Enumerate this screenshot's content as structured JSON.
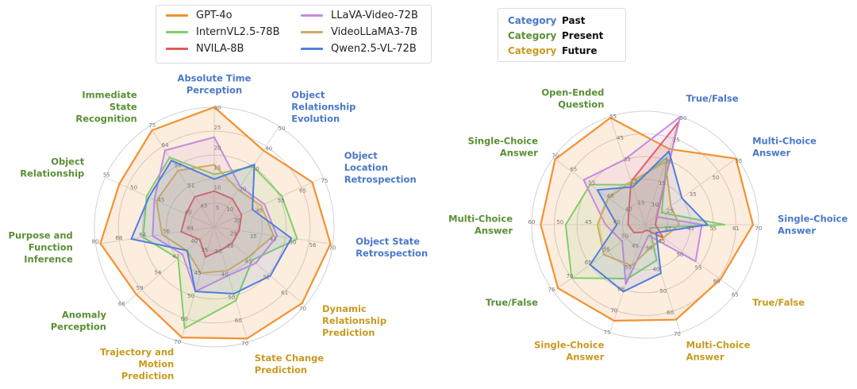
{
  "legend": {
    "models": [
      {
        "name": "GPT-4o",
        "color": "#f39130"
      },
      {
        "name": "InternVL2.5-78B",
        "color": "#7fcf6a"
      },
      {
        "name": "NVILA-8B",
        "color": "#e05a5a"
      },
      {
        "name": "LLaVA-Video-72B",
        "color": "#c58be0"
      },
      {
        "name": "VideoLLaMA3-7B",
        "color": "#cfae5e"
      },
      {
        "name": "Qwen2.5-VL-72B",
        "color": "#4f7fde"
      }
    ],
    "category_word": "Category",
    "categories": [
      {
        "name": "Past",
        "color": "#4a78c8"
      },
      {
        "name": "Present",
        "color": "#5a8f35"
      },
      {
        "name": "Future",
        "color": "#c89a1e"
      }
    ]
  },
  "chart_data": [
    {
      "type": "radar",
      "title": "",
      "axes": [
        {
          "label": "Absolute Time Perception",
          "category": "Past",
          "ticks": [
            "5",
            "10",
            "15",
            "20",
            "25",
            "30"
          ],
          "max": 30
        },
        {
          "label": "Object Relationship Evolution",
          "category": "Past",
          "ticks": [
            "10",
            "20",
            "30",
            "40",
            "50"
          ],
          "max": 50
        },
        {
          "label": "Object Location Retrospection",
          "category": "Past",
          "ticks": [
            "35",
            "45",
            "55",
            "65",
            "75"
          ],
          "max": 75
        },
        {
          "label": "Object State Retrospection",
          "category": "Past",
          "ticks": [
            "29",
            "35",
            "43",
            "50",
            "56",
            "70"
          ],
          "max": 70
        },
        {
          "label": "Dynamic Relationship Prediction",
          "category": "Future",
          "ticks": [
            "38",
            "45",
            "52",
            "61",
            "70"
          ],
          "max": 70
        },
        {
          "label": "State Change Prediction",
          "category": "Future",
          "ticks": [
            "30",
            "40",
            "50",
            "60",
            "70"
          ],
          "max": 70
        },
        {
          "label": "Trajectory and Motion Prediction",
          "category": "Future",
          "ticks": [
            "35",
            "45",
            "50",
            "60",
            "70"
          ],
          "max": 70
        },
        {
          "label": "Anomaly Perception",
          "category": "Present",
          "ticks": [
            "40",
            "47",
            "54",
            "59",
            "68"
          ],
          "max": 68
        },
        {
          "label": "Purpose and Function Inference",
          "category": "Present",
          "ticks": [
            "44",
            "56",
            "64",
            "68",
            "80"
          ],
          "max": 80
        },
        {
          "label": "Object Relationship",
          "category": "Present",
          "ticks": [
            "40",
            "45",
            "50",
            "55"
          ],
          "max": 55
        },
        {
          "label": "Immediate State Recognition",
          "category": "Present",
          "ticks": [
            "45",
            "51",
            "58",
            "64",
            "75"
          ],
          "max": 75
        }
      ],
      "series": [
        {
          "name": "GPT-4o",
          "values": [
            1.0,
            0.76,
            0.9,
            0.98,
            0.97,
            0.97,
            0.96,
            0.86,
            0.96,
            0.87,
            0.96
          ]
        },
        {
          "name": "InternVL2.5-78B",
          "values": [
            0.44,
            0.6,
            0.62,
            0.7,
            0.42,
            0.64,
            0.88,
            0.4,
            0.6,
            0.62,
            0.69
          ]
        },
        {
          "name": "NVILA-8B",
          "values": [
            0.3,
            0.28,
            0.25,
            0.21,
            0.2,
            0.2,
            0.26,
            0.16,
            0.28,
            0.26,
            0.3
          ]
        },
        {
          "name": "LLaVA-Video-72B",
          "values": [
            0.75,
            0.4,
            0.46,
            0.53,
            0.46,
            0.42,
            0.56,
            0.35,
            0.52,
            0.55,
            0.76
          ]
        },
        {
          "name": "VideoLLaMA3-7B",
          "values": [
            0.52,
            0.37,
            0.43,
            0.5,
            0.38,
            0.38,
            0.4,
            0.3,
            0.44,
            0.53,
            0.56
          ]
        },
        {
          "name": "Qwen2.5-VL-72B",
          "values": [
            0.4,
            0.62,
            0.35,
            0.65,
            0.62,
            0.58,
            0.56,
            0.3,
            0.7,
            0.6,
            0.66
          ]
        }
      ]
    },
    {
      "type": "radar",
      "title": "",
      "axes": [
        {
          "label": "True/False",
          "category": "Past",
          "ticks": [
            "10",
            "15",
            "20",
            "25",
            "30"
          ],
          "max": 30
        },
        {
          "label": "Multi-Choice Answer",
          "category": "Past",
          "ticks": [
            "25",
            "35",
            "50",
            "55"
          ],
          "max": 55
        },
        {
          "label": "Single-Choice Answer",
          "category": "Past",
          "ticks": [
            "37",
            "45",
            "55",
            "61",
            "70"
          ],
          "max": 70
        },
        {
          "label": "True/False",
          "category": "Future",
          "ticks": [
            "45",
            "50",
            "55",
            "60",
            "65"
          ],
          "max": 65
        },
        {
          "label": "Multi-Choice Answer",
          "category": "Future",
          "ticks": [
            "30",
            "40",
            "50",
            "60",
            "70"
          ],
          "max": 70
        },
        {
          "label": "Single-Choice Answer",
          "category": "Future",
          "ticks": [
            "45",
            "55",
            "65",
            "70",
            "75"
          ],
          "max": 75
        },
        {
          "label": "True/False",
          "category": "Present",
          "ticks": [
            "50",
            "55",
            "65",
            "70",
            "76"
          ],
          "max": 76
        },
        {
          "label": "Multi-Choice Answer",
          "category": "Present",
          "ticks": [
            "40",
            "45",
            "50",
            "60"
          ],
          "max": 60
        },
        {
          "label": "Single-Choice Answer",
          "category": "Present",
          "ticks": [
            "40",
            "45",
            "55",
            "65",
            "70"
          ],
          "max": 70
        },
        {
          "label": "Open-Ended Question",
          "category": "Present",
          "ticks": [
            "15",
            "25",
            "35",
            "45",
            "55"
          ],
          "max": 55
        }
      ],
      "series": [
        {
          "name": "GPT-4o",
          "values": [
            0.7,
            0.99,
            0.95,
            0.82,
            0.88,
            0.89,
            0.95,
            0.92,
            0.98,
            0.99
          ]
        },
        {
          "name": "InternVL2.5-78B",
          "values": [
            0.62,
            0.18,
            0.7,
            0.05,
            0.33,
            0.5,
            0.8,
            0.7,
            0.6,
            0.37
          ]
        },
        {
          "name": "NVILA-8B",
          "values": [
            0.95,
            0.13,
            0.09,
            0.2,
            0.05,
            0.07,
            0.12,
            0.15,
            0.18,
            0.4
          ]
        },
        {
          "name": "LLaVA-Video-72B",
          "values": [
            1.0,
            0.12,
            0.5,
            0.55,
            0.1,
            0.55,
            0.25,
            0.35,
            0.67,
            0.6
          ]
        },
        {
          "name": "VideoLLaMA3-7B",
          "values": [
            0.58,
            0.28,
            0.3,
            0.2,
            0.2,
            0.38,
            0.45,
            0.42,
            0.4,
            0.4
          ]
        },
        {
          "name": "Qwen2.5-VL-72B",
          "values": [
            0.68,
            0.4,
            0.55,
            0.12,
            0.45,
            0.62,
            0.6,
            0.25,
            0.52,
            0.35
          ]
        }
      ]
    }
  ]
}
